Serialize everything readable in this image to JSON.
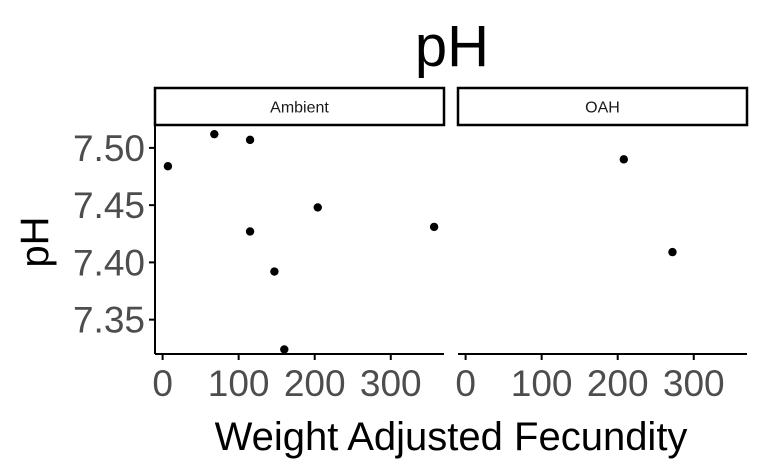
{
  "chart_data": {
    "type": "scatter",
    "title": "pH",
    "xlabel": "Weight Adjusted Fecundity",
    "ylabel": "pH",
    "xlim": [
      -10,
      370
    ],
    "ylim": [
      7.32,
      7.52
    ],
    "x_ticks": [
      0,
      100,
      200,
      300
    ],
    "x_tick_labels": [
      "0",
      "100",
      "200",
      "300"
    ],
    "y_ticks": [
      7.35,
      7.4,
      7.45,
      7.5
    ],
    "y_tick_labels": [
      "7.35",
      "7.40",
      "7.45",
      "7.50"
    ],
    "grid": false,
    "point_color": "#000000",
    "panels": [
      {
        "label": "Ambient",
        "points": [
          {
            "x": 7,
            "y": 7.484
          },
          {
            "x": 68,
            "y": 7.512
          },
          {
            "x": 115,
            "y": 7.507
          },
          {
            "x": 115,
            "y": 7.427
          },
          {
            "x": 147,
            "y": 7.392
          },
          {
            "x": 160,
            "y": 7.324
          },
          {
            "x": 204,
            "y": 7.448
          },
          {
            "x": 357,
            "y": 7.431
          }
        ]
      },
      {
        "label": "OAH",
        "points": [
          {
            "x": 208,
            "y": 7.49
          },
          {
            "x": 272,
            "y": 7.409
          }
        ]
      }
    ]
  }
}
